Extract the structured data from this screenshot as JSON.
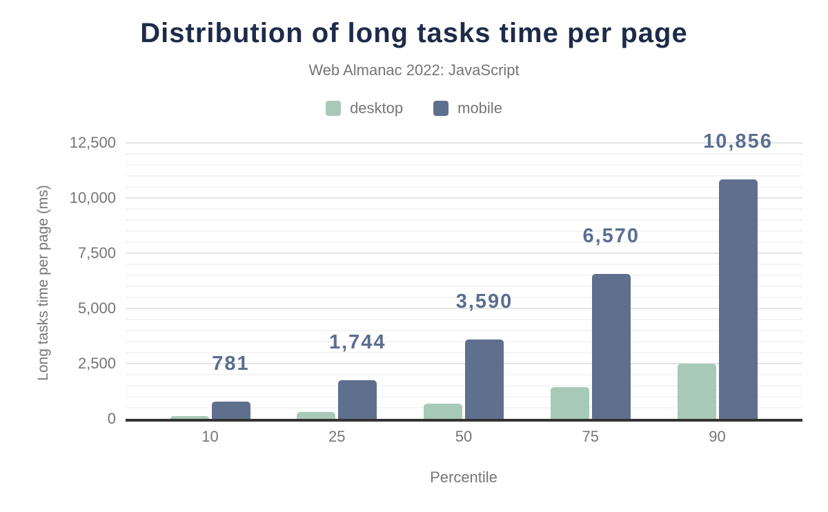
{
  "header": {
    "title": "Distribution of long tasks time per page",
    "subtitle": "Web Almanac 2022: JavaScript"
  },
  "legend": {
    "items": [
      {
        "label": "desktop",
        "color": "#a9c9b8"
      },
      {
        "label": "mobile",
        "color": "#5e708d"
      }
    ]
  },
  "chart_data": {
    "type": "bar",
    "title": "Distribution of long tasks time per page",
    "subtitle": "Web Almanac 2022: JavaScript",
    "categories": [
      "10",
      "25",
      "50",
      "75",
      "90"
    ],
    "series": [
      {
        "name": "desktop",
        "color": "#a9c9b8",
        "values": [
          115,
          320,
          680,
          1430,
          2500
        ]
      },
      {
        "name": "mobile",
        "color": "#5e708d",
        "values": [
          781,
          1744,
          3590,
          6570,
          10856
        ],
        "data_labels": [
          "781",
          "1,744",
          "3,590",
          "6,570",
          "10,856"
        ]
      }
    ],
    "xlabel": "Percentile",
    "ylabel": "Long tasks time per page (ms)",
    "ylim": [
      0,
      12500
    ],
    "yticks": [
      0,
      2500,
      5000,
      7500,
      10000,
      12500
    ],
    "ytick_labels": [
      "0",
      "2,500",
      "5,000",
      "7,500",
      "10,000",
      "12,500"
    ],
    "grid": {
      "on": true,
      "major_step": 2500,
      "minor_step": 500
    },
    "legend_position": "top"
  },
  "colors": {
    "title": "#1e2b49",
    "subtitle_text": "#757575",
    "axis_text": "#757575",
    "data_label": "#5b6e91",
    "desktop_bar": "#a9c9b8",
    "mobile_bar": "#5e708d",
    "axis_line": "#333333",
    "gridline_major": "#e4e4e4",
    "gridline_minor": "#f4f4f4"
  }
}
